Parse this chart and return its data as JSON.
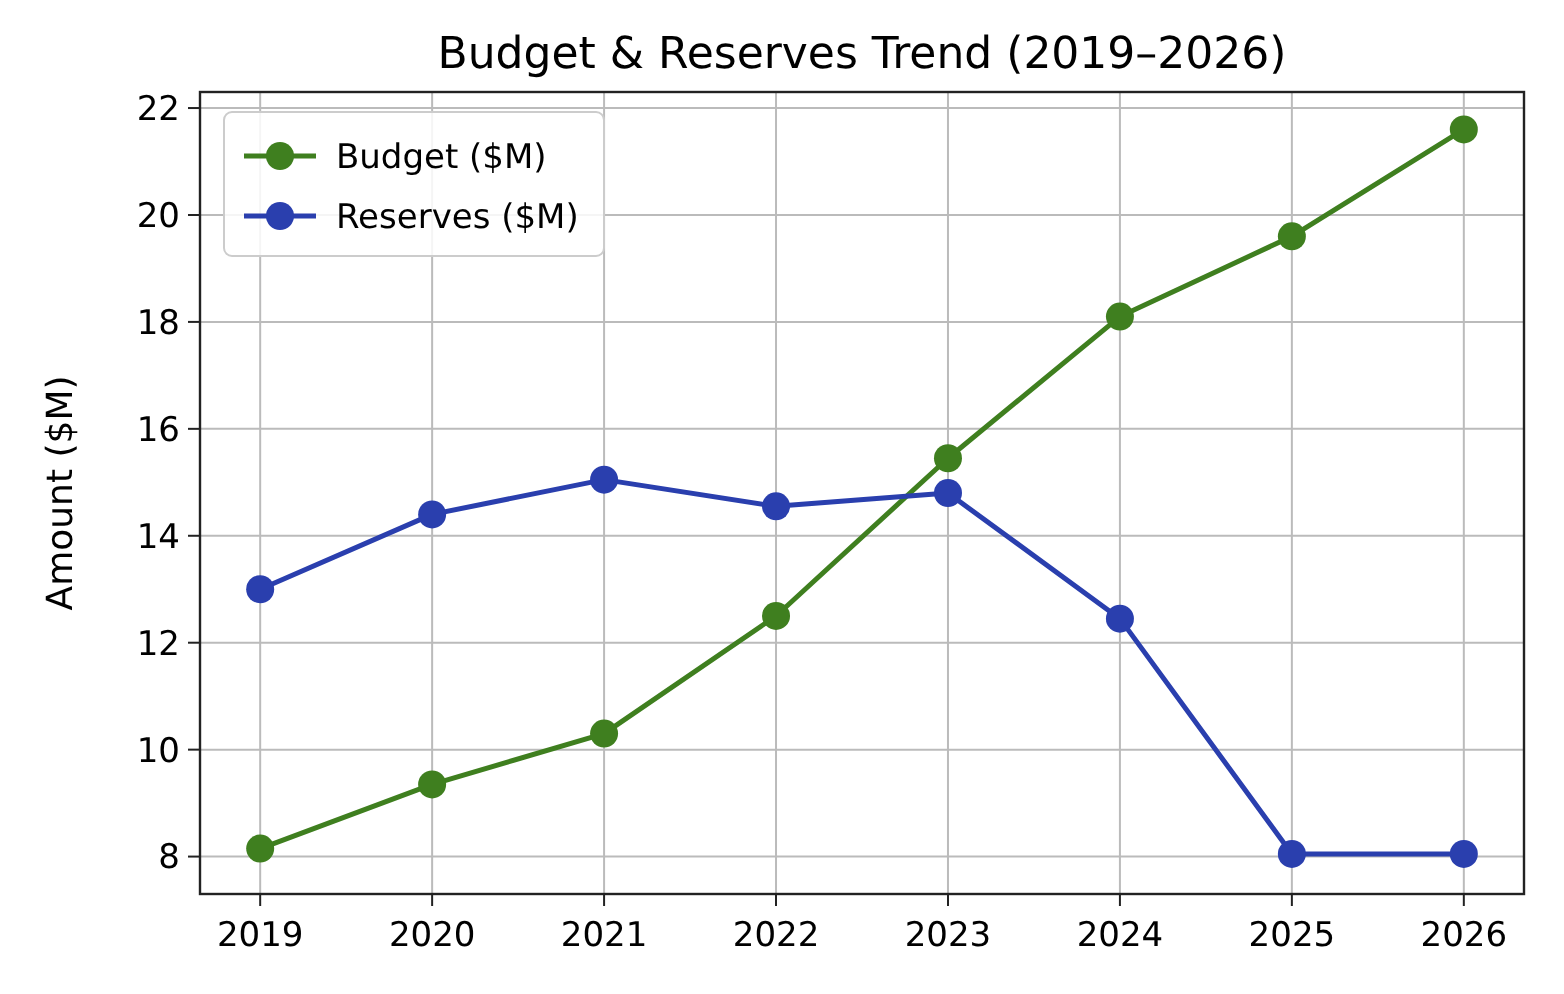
{
  "chart_data": {
    "type": "line",
    "title": "Budget & Reserves Trend (2019–2026)",
    "ylabel": "Amount ($M)",
    "categories": [
      "2019",
      "2020",
      "2021",
      "2022",
      "2023",
      "2024",
      "2025",
      "2026"
    ],
    "series": [
      {
        "name": "Budget ($M)",
        "color": "#3f7f1f",
        "values": [
          8.15,
          9.35,
          10.3,
          12.5,
          15.45,
          18.1,
          19.6,
          21.6
        ]
      },
      {
        "name": "Reserves ($M)",
        "color": "#2a3fae",
        "values": [
          13.0,
          14.4,
          15.05,
          14.55,
          14.8,
          12.45,
          8.05,
          8.05
        ]
      }
    ],
    "ylim": [
      7.3,
      22.3
    ],
    "yticks": [
      8,
      10,
      12,
      14,
      16,
      18,
      20,
      22
    ],
    "grid": true,
    "legend": "top left",
    "marker": "circle",
    "line_style": "solid"
  }
}
